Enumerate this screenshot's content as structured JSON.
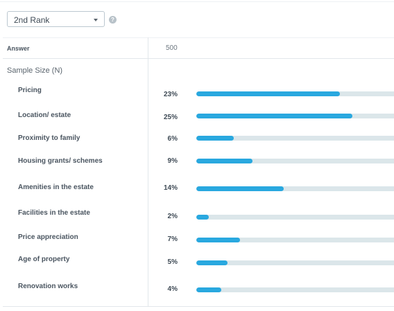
{
  "dropdown": {
    "selected": "2nd Rank"
  },
  "help": {
    "symbol": "?"
  },
  "table": {
    "header": {
      "answer": "Answer",
      "count": "500"
    },
    "sample_size_label": "Sample Size (N)",
    "rows": [
      {
        "label": "Pricing",
        "pct": "23%",
        "value": 23
      },
      {
        "label": "Location/ estate",
        "pct": "25%",
        "value": 25
      },
      {
        "label": "Proximity to family",
        "pct": "6%",
        "value": 6
      },
      {
        "label": "Housing grants/ schemes",
        "pct": "9%",
        "value": 9
      },
      {
        "label": "Amenities in the estate",
        "pct": "14%",
        "value": 14
      },
      {
        "label": "Facilities in the estate",
        "pct": "2%",
        "value": 2
      },
      {
        "label": "Price appreciation",
        "pct": "7%",
        "value": 7
      },
      {
        "label": "Age of property",
        "pct": "5%",
        "value": 5
      },
      {
        "label": "Renovation works",
        "pct": "4%",
        "value": 4
      }
    ]
  },
  "colors": {
    "bar": "#29a8df",
    "track": "#dbe6ea"
  }
}
